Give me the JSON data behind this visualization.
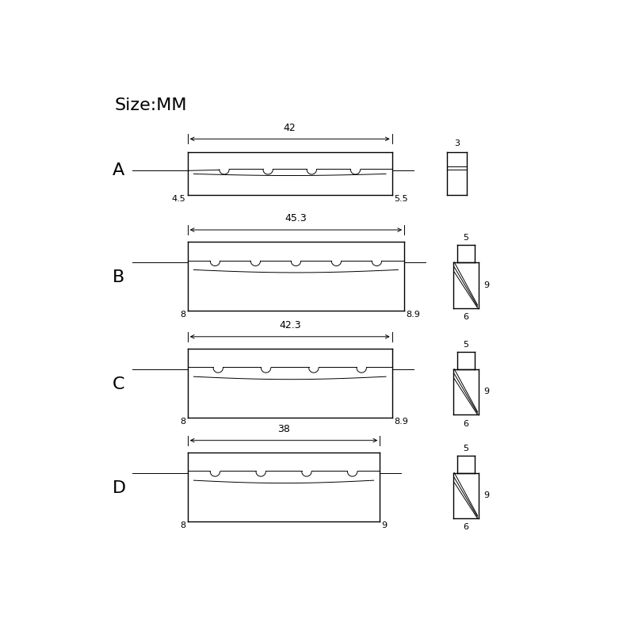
{
  "title": "Size:MM",
  "bg_color": "#ffffff",
  "sections": [
    {
      "label": "A",
      "width_label": "42",
      "left_label": "4.5",
      "right_label": "5.5",
      "num_slots": 4
    },
    {
      "label": "B",
      "width_label": "45.3",
      "left_label": "8",
      "right_label": "8.9",
      "num_slots": 5
    },
    {
      "label": "C",
      "width_label": "42.3",
      "left_label": "8",
      "right_label": "8.9",
      "num_slots": 4
    },
    {
      "label": "D",
      "width_label": "38",
      "left_label": "8",
      "right_label": "9",
      "num_slots": 4
    }
  ],
  "lw": 1.0,
  "lw_thin": 0.7,
  "color": "#000000"
}
